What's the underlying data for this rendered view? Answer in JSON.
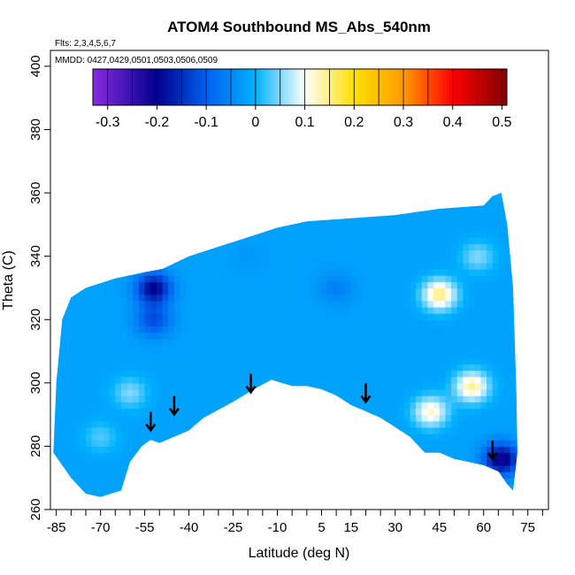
{
  "chart_data": {
    "type": "heatmap",
    "title": "ATOM4 Southbound MS_Abs_540nm",
    "flights_note": "Flts: 2,3,4,5,6,7",
    "dates_note": "MMDD: 0427,0429,0501,0503,0506,0509",
    "xlabel": "Latitude (deg N)",
    "ylabel": "Theta (C)",
    "xlim": [
      -87,
      82
    ],
    "ylim": [
      260,
      405
    ],
    "x_ticks": [
      -85,
      -70,
      -55,
      -40,
      -25,
      -10,
      5,
      15,
      30,
      45,
      60,
      75
    ],
    "y_ticks": [
      260,
      280,
      300,
      320,
      340,
      360,
      380,
      400
    ],
    "colorbar": {
      "range": [
        -0.33,
        0.51
      ],
      "ticks": [
        -0.3,
        -0.2,
        -0.1,
        0,
        0.1,
        0.2,
        0.3,
        0.4,
        0.5
      ],
      "colors": [
        {
          "value": -0.33,
          "color": "#8a2be2"
        },
        {
          "value": -0.2,
          "color": "#00008b"
        },
        {
          "value": -0.1,
          "color": "#0060f0"
        },
        {
          "value": 0.0,
          "color": "#00b2ff"
        },
        {
          "value": 0.1,
          "color": "#ffffff"
        },
        {
          "value": 0.2,
          "color": "#ffe000"
        },
        {
          "value": 0.3,
          "color": "#ff9a00"
        },
        {
          "value": 0.4,
          "color": "#ff0000"
        },
        {
          "value": 0.5,
          "color": "#8b0000"
        }
      ]
    },
    "field_outline": {
      "top": [
        [
          -86,
          278
        ],
        [
          -85,
          300
        ],
        [
          -83,
          320
        ],
        [
          -80,
          327
        ],
        [
          -75,
          330
        ],
        [
          -65,
          333
        ],
        [
          -55,
          335
        ],
        [
          -49,
          336
        ],
        [
          -40,
          340
        ],
        [
          -30,
          343
        ],
        [
          -20,
          346
        ],
        [
          -10,
          349
        ],
        [
          0,
          351
        ],
        [
          15,
          352
        ],
        [
          30,
          353
        ],
        [
          45,
          355
        ],
        [
          60,
          356
        ],
        [
          63,
          359
        ],
        [
          66,
          360
        ],
        [
          68,
          350
        ],
        [
          70,
          330
        ],
        [
          71,
          300
        ],
        [
          71.5,
          278
        ]
      ],
      "bottom": [
        [
          -86,
          278
        ],
        [
          -80,
          270
        ],
        [
          -75,
          265
        ],
        [
          -70,
          264
        ],
        [
          -63,
          266
        ],
        [
          -60,
          275
        ],
        [
          -56,
          280
        ],
        [
          -53,
          282
        ],
        [
          -50,
          281
        ],
        [
          -45,
          283
        ],
        [
          -40,
          285
        ],
        [
          -35,
          289
        ],
        [
          -25,
          294
        ],
        [
          -18,
          298
        ],
        [
          -12,
          301
        ],
        [
          -5,
          299
        ],
        [
          0,
          299
        ],
        [
          5,
          298
        ],
        [
          10,
          296
        ],
        [
          15,
          293
        ],
        [
          20,
          291
        ],
        [
          25,
          289
        ],
        [
          30,
          286
        ],
        [
          35,
          283
        ],
        [
          38,
          280
        ],
        [
          40,
          278
        ],
        [
          45,
          278
        ],
        [
          50,
          276
        ],
        [
          55,
          275
        ],
        [
          60,
          274
        ],
        [
          65,
          272
        ],
        [
          68,
          268
        ],
        [
          70,
          266
        ],
        [
          71.5,
          278
        ]
      ]
    },
    "features": [
      {
        "lat": -52,
        "theta": 330,
        "value": -0.2
      },
      {
        "lat": -52,
        "theta": 320,
        "value": -0.12
      },
      {
        "lat": -60,
        "theta": 297,
        "value": 0.05
      },
      {
        "lat": -70,
        "theta": 283,
        "value": 0.03
      },
      {
        "lat": 45,
        "theta": 328,
        "value": 0.15
      },
      {
        "lat": 42,
        "theta": 291,
        "value": 0.12
      },
      {
        "lat": 56,
        "theta": 299,
        "value": 0.14
      },
      {
        "lat": 66,
        "theta": 276,
        "value": -0.22
      },
      {
        "lat": 58,
        "theta": 340,
        "value": 0.05
      },
      {
        "lat": -20,
        "theta": 340,
        "value": -0.03
      },
      {
        "lat": 10,
        "theta": 330,
        "value": -0.06
      }
    ],
    "background_value": -0.02,
    "arrows": [
      {
        "lat": -53,
        "theta": 285
      },
      {
        "lat": -45,
        "theta": 290
      },
      {
        "lat": -19,
        "theta": 297
      },
      {
        "lat": 20,
        "theta": 294
      },
      {
        "lat": 63,
        "theta": 276
      }
    ]
  }
}
